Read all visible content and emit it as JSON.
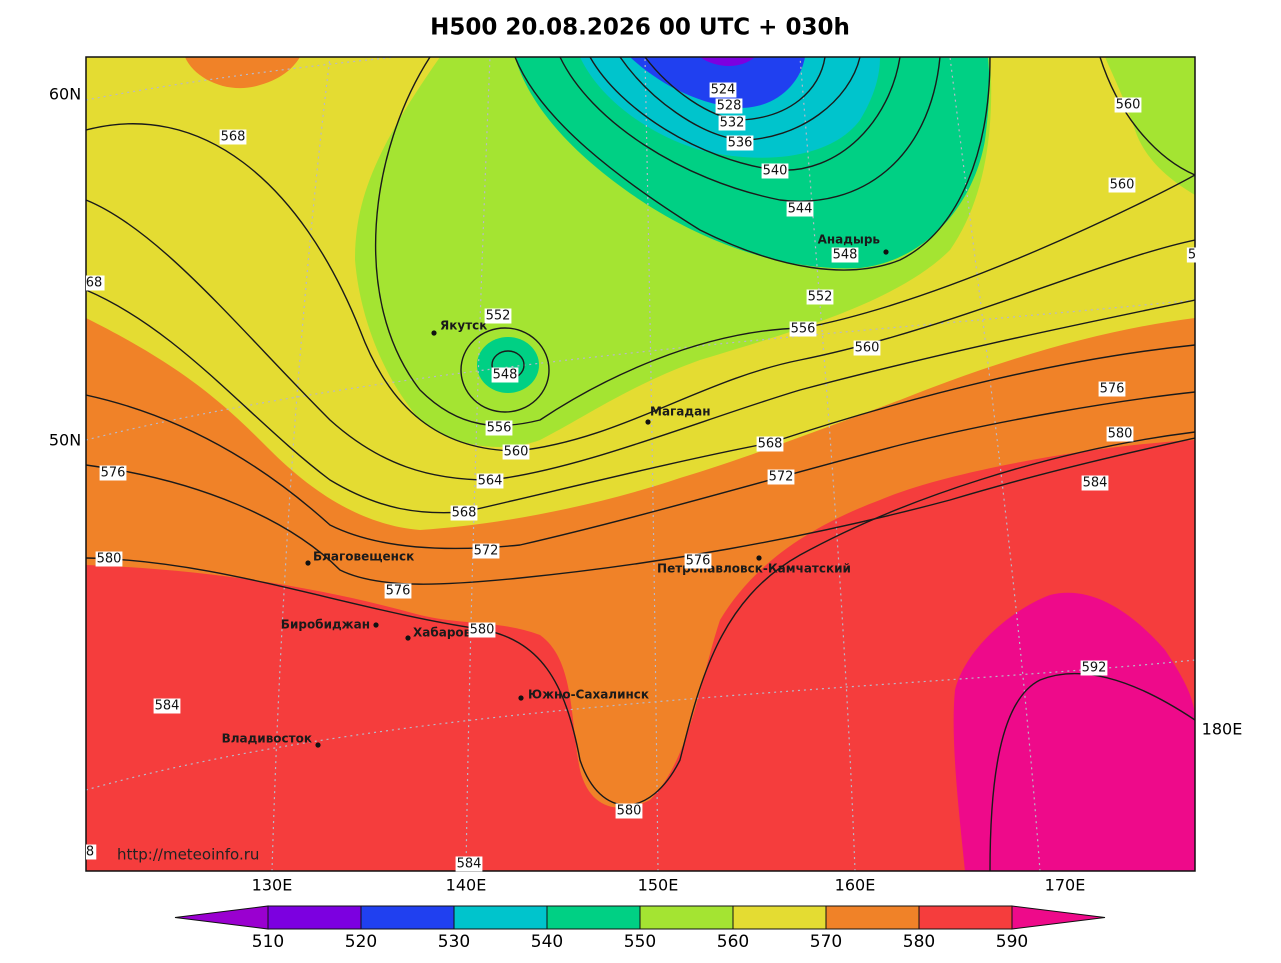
{
  "title": "H500  20.08.2026 00 UTC + 030h",
  "lat_labels": [
    "60N",
    "50N"
  ],
  "lon_labels": [
    "130E",
    "140E",
    "150E",
    "160E",
    "170E",
    "180E"
  ],
  "watermark": "http://meteoinfo.ru",
  "cities": [
    "Якутск",
    "Магадан",
    "Анадырь",
    "Благовещенск",
    "Биробиджан",
    "Хабаровск",
    "Петропавловск-Камчатский",
    "Южно-Сахалинск",
    "Владивосток"
  ],
  "contour_labels": [
    524,
    528,
    532,
    536,
    540,
    544,
    548,
    552,
    556,
    560,
    576,
    580,
    584,
    592,
    568,
    560,
    560,
    5,
    68,
    552,
    548,
    556,
    560,
    564,
    568,
    572,
    576,
    580,
    568,
    572,
    576,
    580,
    584,
    584,
    580,
    576,
    8
  ],
  "colorbar": {
    "ticks": [
      510,
      520,
      530,
      540,
      550,
      560,
      570,
      580,
      590
    ],
    "colors": [
      "#9a00d0",
      "#7c00e0",
      "#2040f0",
      "#00c4cc",
      "#00d084",
      "#a4e432",
      "#e4dc32",
      "#f08228",
      "#f53d3d",
      "#ee0a8a"
    ]
  }
}
